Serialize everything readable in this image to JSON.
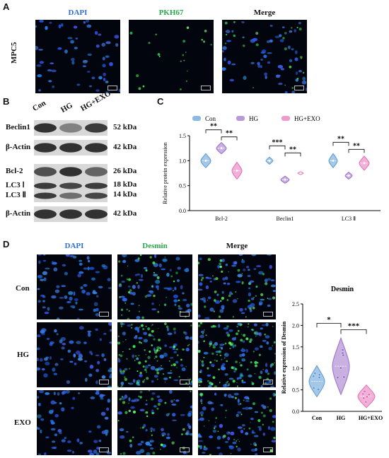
{
  "panel_letters": {
    "a": "A",
    "b": "B",
    "c": "C",
    "d": "D"
  },
  "panel_a": {
    "columns": [
      "DAPI",
      "PKH67",
      "Merge"
    ],
    "row_label": "MPC5"
  },
  "panel_b": {
    "lanes": [
      "Con",
      "HG",
      "HG+EXO"
    ],
    "bands": [
      {
        "label": "Beclin1",
        "kda": "52 kDa",
        "intensity": [
          0.85,
          0.45,
          0.8
        ]
      },
      {
        "label": "β-Actin",
        "kda": "42 kDa",
        "intensity": [
          0.85,
          0.85,
          0.85
        ]
      },
      {
        "label": "Bcl-2",
        "kda": "26 kDa",
        "intensity": [
          0.7,
          0.85,
          0.6
        ]
      },
      {
        "label": "LC3 Ⅰ",
        "kda": "18 kDa",
        "intensity": [
          0.8,
          0.75,
          0.8
        ]
      },
      {
        "label": "LC3 Ⅱ",
        "kda": "14 kDa",
        "intensity": [
          0.8,
          0.55,
          0.75
        ]
      },
      {
        "label": "β-Actin",
        "kda": "42 kDa",
        "intensity": [
          0.85,
          0.85,
          0.85
        ]
      }
    ]
  },
  "chart_data": [
    {
      "type": "violin",
      "title": "",
      "ylabel": "Relative protein expression",
      "ylim": [
        0.0,
        1.5
      ],
      "yticks": [
        "0.0",
        "0.5",
        "1.0",
        "1.5"
      ],
      "categories": [
        "Bcl-2",
        "Beclin1",
        "LC3 Ⅱ"
      ],
      "legend": [
        "Con",
        "HG",
        "HG+EXO"
      ],
      "legend_position": "top",
      "colors": {
        "Con": "#5b9bd5",
        "HG": "#9b6fc9",
        "HG+EXO": "#e56fb7"
      },
      "series": [
        {
          "name": "Con",
          "values": [
            1.0,
            1.0,
            1.0
          ]
        },
        {
          "name": "HG",
          "values": [
            1.25,
            0.62,
            0.7
          ]
        },
        {
          "name": "HG+EXO",
          "values": [
            0.8,
            0.75,
            0.95
          ]
        }
      ],
      "significance": [
        {
          "group": "Bcl-2",
          "pair": [
            "Con",
            "HG"
          ],
          "label": "**"
        },
        {
          "group": "Bcl-2",
          "pair": [
            "HG",
            "HG+EXO"
          ],
          "label": "**"
        },
        {
          "group": "Beclin1",
          "pair": [
            "Con",
            "HG"
          ],
          "label": "***"
        },
        {
          "group": "Beclin1",
          "pair": [
            "HG",
            "HG+EXO"
          ],
          "label": "**"
        },
        {
          "group": "LC3 Ⅱ",
          "pair": [
            "Con",
            "HG"
          ],
          "label": "**"
        },
        {
          "group": "LC3 Ⅱ",
          "pair": [
            "HG",
            "HG+EXO"
          ],
          "label": "**"
        }
      ]
    },
    {
      "type": "violin",
      "title": "Desmin",
      "ylabel": "Relative expression of Desmin",
      "ylim": [
        0.0,
        2.5
      ],
      "yticks": [
        "0.0",
        "0.5",
        "1.0",
        "1.5",
        "2.0",
        "2.5"
      ],
      "categories": [
        "Con",
        "HG",
        "HG+EXO"
      ],
      "colors": {
        "Con": "#5b9bd5",
        "HG": "#9b6fc9",
        "HG+EXO": "#e56fb7"
      },
      "values": [
        0.7,
        1.05,
        0.35
      ],
      "significance": [
        {
          "pair": [
            "Con",
            "HG"
          ],
          "label": "*"
        },
        {
          "pair": [
            "HG",
            "HG+EXO"
          ],
          "label": "***"
        }
      ]
    }
  ],
  "panel_d": {
    "columns": [
      "DAPI",
      "Desmin",
      "Merge"
    ],
    "rows": [
      "Con",
      "HG",
      "EXO"
    ]
  }
}
